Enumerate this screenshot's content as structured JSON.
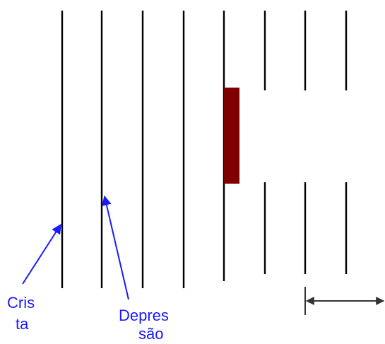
{
  "labels": {
    "crista_line1": "Cris",
    "crista_line2": "ta",
    "depressao_line1": "Depres",
    "depressao_line2": "são"
  },
  "colors": {
    "wave_lines": "#000000",
    "barrier": "#7f0000",
    "label_text": "#1a1aff",
    "pointer_arrows": "#1a1aff",
    "dimension_arrow": "#333333"
  }
}
